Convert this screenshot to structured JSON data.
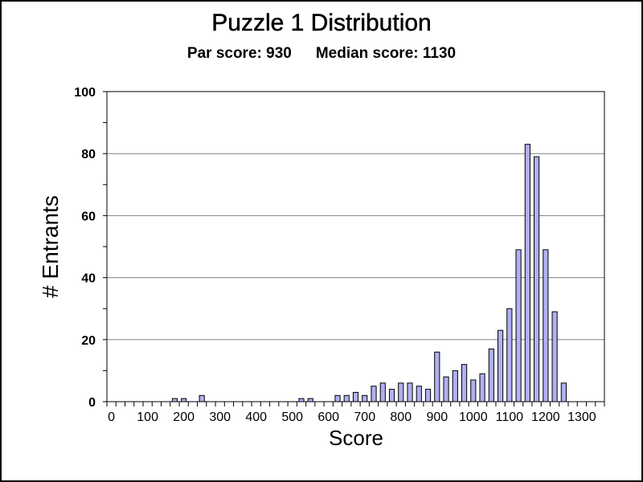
{
  "chart_data": {
    "type": "bar",
    "title": "Puzzle 1 Distribution",
    "subtitle": {
      "par": "Par score: 930",
      "median": "Median score: 1130"
    },
    "xlabel": "Score",
    "ylabel": "# Entrants",
    "xlim": [
      -12.5,
      1362.5
    ],
    "ylim": [
      0,
      100
    ],
    "x_tick_labels": [
      0,
      100,
      200,
      300,
      400,
      500,
      600,
      700,
      800,
      900,
      1000,
      1100,
      1200,
      1300
    ],
    "y_tick_labels": [
      0,
      20,
      40,
      60,
      80,
      100
    ],
    "grid": true,
    "legend": "none",
    "bar_color": "#b0b0f0",
    "bar_edge_color": "#000000",
    "bin_width": 25,
    "x": [
      175,
      200,
      250,
      525,
      550,
      625,
      650,
      675,
      700,
      725,
      750,
      775,
      800,
      825,
      850,
      875,
      900,
      925,
      950,
      975,
      1000,
      1025,
      1050,
      1075,
      1100,
      1125,
      1150,
      1175,
      1200,
      1225,
      1250
    ],
    "values": [
      1,
      1,
      2,
      1,
      1,
      2,
      2,
      3,
      2,
      5,
      6,
      4,
      6,
      6,
      5,
      4,
      16,
      8,
      10,
      12,
      7,
      9,
      17,
      23,
      30,
      49,
      83,
      79,
      49,
      29,
      6
    ]
  }
}
